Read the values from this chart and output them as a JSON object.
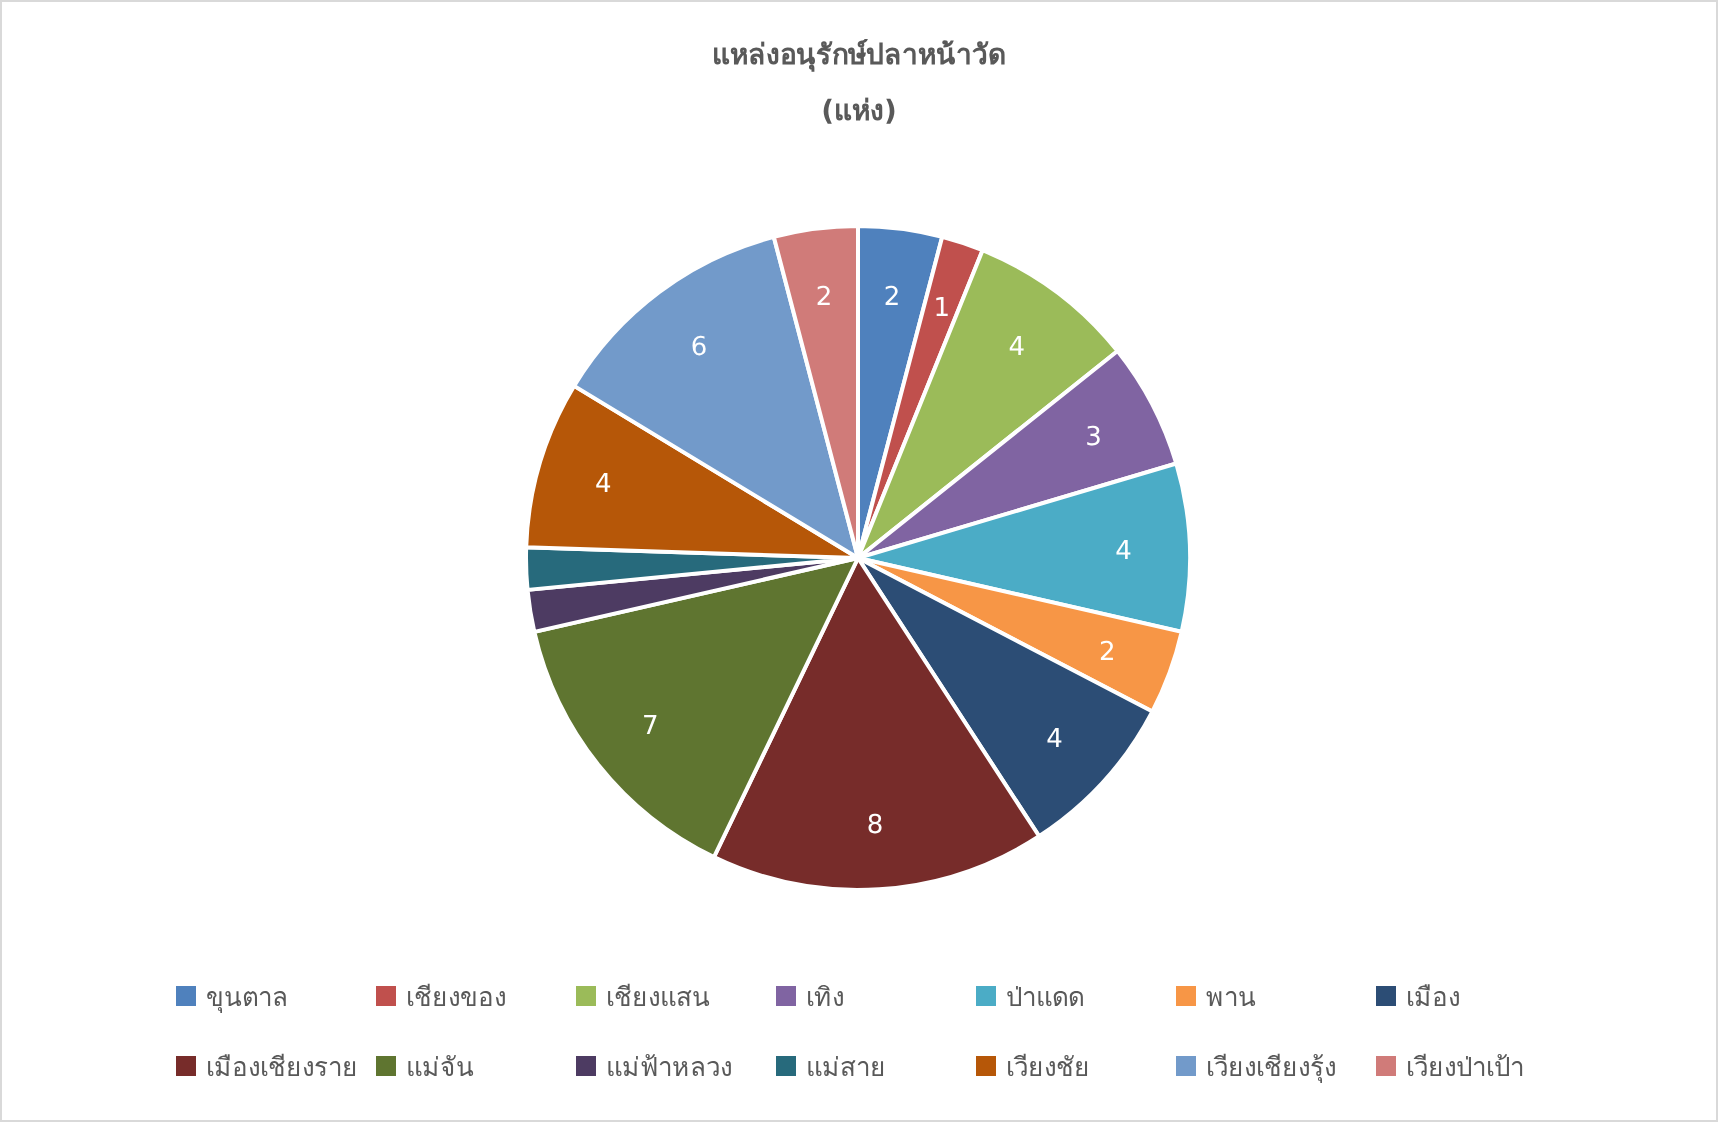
{
  "chart_data": {
    "type": "pie",
    "title": "แหล่งอนุรักษ์ปลาหน้าวัด",
    "subtitle": "(แห่ง)",
    "categories": [
      "ขุนตาล",
      "เชียงของ",
      "เชียงแสน",
      "เทิง",
      "ป่าแดด",
      "พาน",
      "เมือง",
      "เมืองเชียงราย",
      "แม่จัน",
      "แม่ฟ้าหลวง",
      "แม่สาย",
      "เวียงชัย",
      "เวียงเชียงรุ้ง",
      "เวียงป่าเป้า"
    ],
    "values": [
      2,
      1,
      4,
      3,
      4,
      2,
      4,
      8,
      7,
      1,
      1,
      4,
      6,
      2
    ],
    "value_labels": [
      "2",
      "1",
      "4",
      "3",
      "4",
      "2",
      "4",
      "8",
      "7",
      null,
      null,
      "4",
      "6",
      "2"
    ],
    "colors": [
      "#4f81bd",
      "#c0504d",
      "#9bbb59",
      "#8064a2",
      "#4bacc6",
      "#f79646",
      "#2c4d75",
      "#772c2a",
      "#5f7530",
      "#4d3b62",
      "#276a7c",
      "#b65708",
      "#729aca",
      "#d07b79"
    ],
    "legend": "bottom"
  }
}
